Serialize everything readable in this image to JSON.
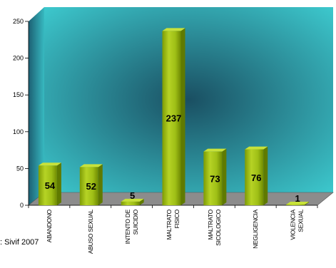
{
  "chart_data": {
    "type": "bar",
    "categories": [
      [
        "ABANDONO"
      ],
      [
        "ABUSO SEXUAL"
      ],
      [
        "INTENTO DE",
        "SUICIDIO"
      ],
      [
        "MALTRATO",
        "FISICO"
      ],
      [
        "MALTRATO",
        "SICOLOGICO"
      ],
      [
        "NEGLIGENCIA"
      ],
      [
        "VIOLENCIA",
        "SEXUAL"
      ]
    ],
    "values": [
      54,
      52,
      5,
      237,
      73,
      76,
      1
    ],
    "data_labels": [
      "54",
      "52",
      "5",
      "237",
      "73",
      "76",
      "1"
    ],
    "ylim": [
      0,
      250
    ],
    "yticks": [
      0,
      50,
      100,
      150,
      200,
      250
    ],
    "ytick_labels": [
      "0",
      "50",
      "100",
      "150",
      "200",
      "250"
    ],
    "title": "",
    "xlabel": "",
    "ylabel": "",
    "grid": false,
    "legend": "none",
    "colors": {
      "bar_front": "#a2c21c",
      "bar_side": "#5f7a00",
      "bar_top": "#c8e23a",
      "back_wall_center": "#1a4f62",
      "back_wall_edge": "#3fd0d4",
      "floor": "#8a8a8a"
    }
  },
  "source_text": ": Sivif 2007"
}
